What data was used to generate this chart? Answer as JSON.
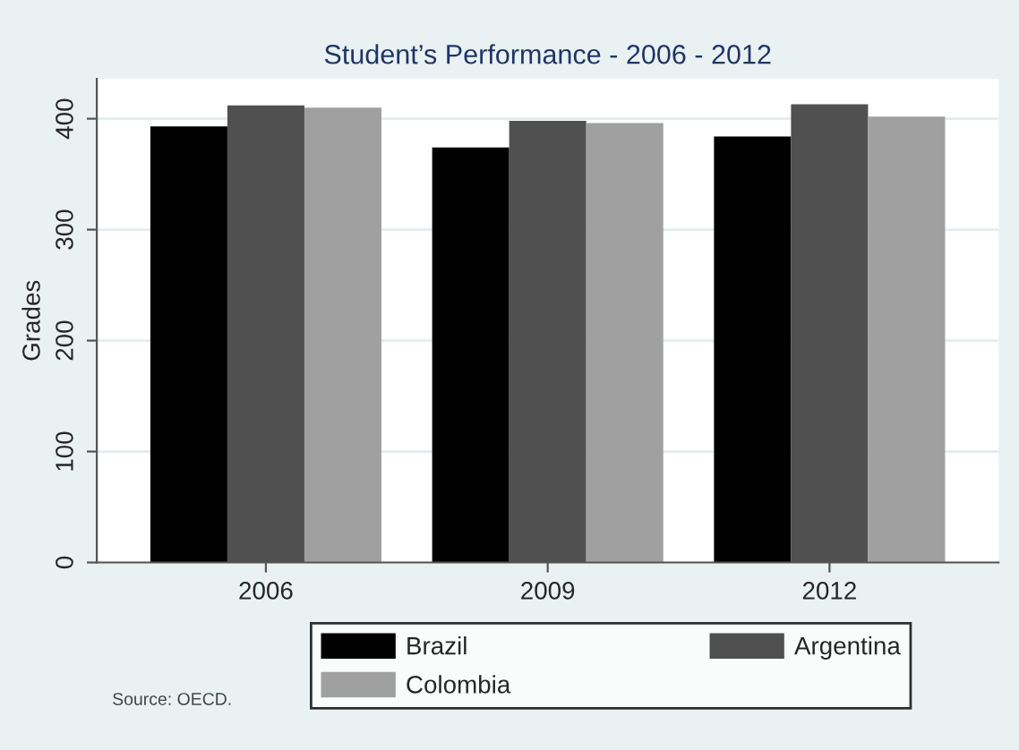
{
  "chart_data": {
    "type": "bar",
    "title": "Student’s Performance - 2006 - 2012",
    "ylabel": "Grades",
    "categories": [
      "2006",
      "2009",
      "2012"
    ],
    "series": [
      {
        "name": "Brazil",
        "color": "#000000",
        "values": [
          393,
          374,
          384
        ]
      },
      {
        "name": "Argentina",
        "color": "#505050",
        "values": [
          412,
          398,
          413
        ]
      },
      {
        "name": "Colombia",
        "color": "#a0a0a0",
        "values": [
          410,
          396,
          402
        ]
      }
    ],
    "ylim": [
      0,
      436
    ],
    "yticks": [
      0,
      100,
      200,
      300,
      400
    ],
    "grid": "y",
    "legend": "bottom",
    "annotations": [
      "Source: OECD."
    ]
  }
}
